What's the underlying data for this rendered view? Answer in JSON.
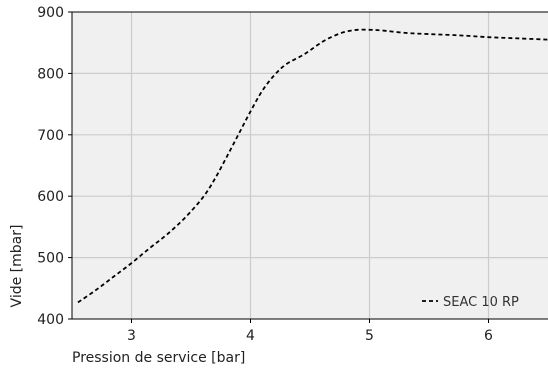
{
  "chart_data": {
    "type": "line",
    "xlabel": "Pression de service [bar]",
    "ylabel": "Vide [mbar]",
    "xlim": [
      2.5,
      6.5
    ],
    "ylim": [
      400,
      900
    ],
    "xticks": [
      3,
      4,
      5,
      6
    ],
    "yticks": [
      400,
      500,
      600,
      700,
      800,
      900
    ],
    "grid": true,
    "legend_position": "bottom-right",
    "colors": {
      "plot_background": "#f0f0f0",
      "grid": "#cccccc",
      "line": "#000000"
    },
    "series": [
      {
        "name": "SEAC 10 RP",
        "line_style": "dashed",
        "x": [
          2.55,
          2.7,
          2.85,
          3.0,
          3.15,
          3.3,
          3.45,
          3.6,
          3.7,
          3.8,
          3.9,
          4.0,
          4.1,
          4.2,
          4.3,
          4.45,
          4.6,
          4.7,
          4.8,
          4.9,
          5.0,
          5.1,
          5.3,
          5.5,
          5.75,
          6.0,
          6.25,
          6.5
        ],
        "y": [
          427,
          447,
          469,
          491,
          515,
          538,
          565,
          598,
          628,
          664,
          701,
          738,
          772,
          797,
          815,
          831,
          851,
          861,
          868,
          871,
          871,
          870,
          866,
          864,
          862,
          859,
          857,
          855
        ]
      }
    ]
  }
}
